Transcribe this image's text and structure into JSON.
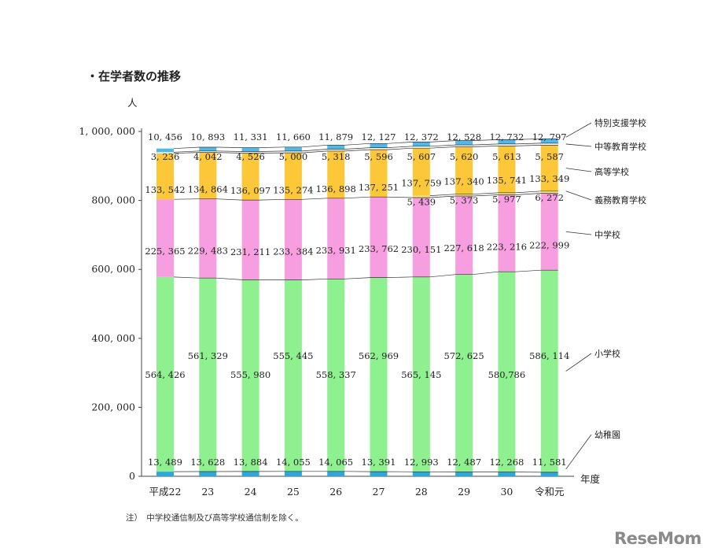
{
  "title": "・在学者数の推移",
  "note": "注）　中学校通信制及び高等学校通信制を除く。",
  "logo": "ReseMom",
  "chart_data": {
    "type": "bar",
    "stacked": true,
    "y_unit": "人",
    "x_unit": "年度",
    "ylim": [
      0,
      1000000
    ],
    "yticks": [
      0,
      200000,
      400000,
      600000,
      800000,
      1000000
    ],
    "ytick_labels": [
      "0",
      "200, 000",
      "400, 000",
      "600, 000",
      "800, 000",
      "1, 000, 000"
    ],
    "categories": [
      "平成22",
      "23",
      "24",
      "25",
      "26",
      "27",
      "28",
      "29",
      "30",
      "令和元"
    ],
    "series": [
      {
        "name": "幼稚園",
        "color": "#2aa7df",
        "values": [
          13489,
          13628,
          13884,
          14055,
          14065,
          13391,
          12993,
          12487,
          12268,
          11581
        ],
        "labels": [
          "13, 489",
          "13, 628",
          "13, 884",
          "14, 055",
          "14, 065",
          "13, 391",
          "12, 993",
          "12, 487",
          "12, 268",
          "11, 581"
        ]
      },
      {
        "name": "小学校",
        "color": "#8ef08e",
        "values": [
          564426,
          561329,
          555980,
          555445,
          558337,
          562969,
          565145,
          572625,
          580786,
          586114
        ],
        "labels": [
          "564, 426",
          "561, 329",
          "555, 980",
          "555, 445",
          "558, 337",
          "562, 969",
          "565, 145",
          "572, 625",
          "580,786",
          "586, 114"
        ]
      },
      {
        "name": "中学校",
        "color": "#f79ee0",
        "values": [
          225365,
          229483,
          231211,
          233384,
          233931,
          233762,
          230151,
          227618,
          223216,
          222999
        ],
        "labels": [
          "225, 365",
          "229, 483",
          "231, 211",
          "233, 384",
          "233, 931",
          "233, 762",
          "230, 151",
          "227, 618",
          "223, 216",
          "222, 999"
        ]
      },
      {
        "name": "義務教育学校",
        "color": "#f2ed78",
        "values": [
          0,
          0,
          0,
          0,
          0,
          0,
          5439,
          5373,
          5977,
          6272
        ],
        "labels": [
          "",
          "",
          "",
          "",
          "",
          "",
          "5, 439",
          "5, 373",
          "5, 977",
          "6, 272"
        ]
      },
      {
        "name": "高等学校",
        "color": "#fcc839",
        "values": [
          133542,
          134864,
          136097,
          135274,
          136898,
          137251,
          137759,
          137340,
          135741,
          133349
        ],
        "labels": [
          "133, 542",
          "134, 864",
          "136, 097",
          "135, 274",
          "136, 898",
          "137, 251",
          "137, 759",
          "137, 340",
          "135, 741",
          "133, 349"
        ]
      },
      {
        "name": "中等教育学校",
        "color": "#ffffff",
        "values": [
          3236,
          4042,
          4526,
          5000,
          5318,
          5596,
          5607,
          5620,
          5613,
          5587
        ],
        "labels": [
          "3, 236",
          "4, 042",
          "4, 526",
          "5, 000",
          "5, 318",
          "5, 596",
          "5, 607",
          "5, 620",
          "5, 613",
          "5, 587"
        ]
      },
      {
        "name": "特別支援学校",
        "color": "#4fb9e8",
        "values": [
          10456,
          10893,
          11331,
          11660,
          11879,
          12127,
          12372,
          12528,
          12732,
          12797
        ],
        "labels": [
          "10, 456",
          "10, 893",
          "11, 331",
          "11, 660",
          "11, 879",
          "12, 127",
          "12, 372",
          "12, 528",
          "12, 732",
          "12, 797"
        ]
      }
    ]
  }
}
